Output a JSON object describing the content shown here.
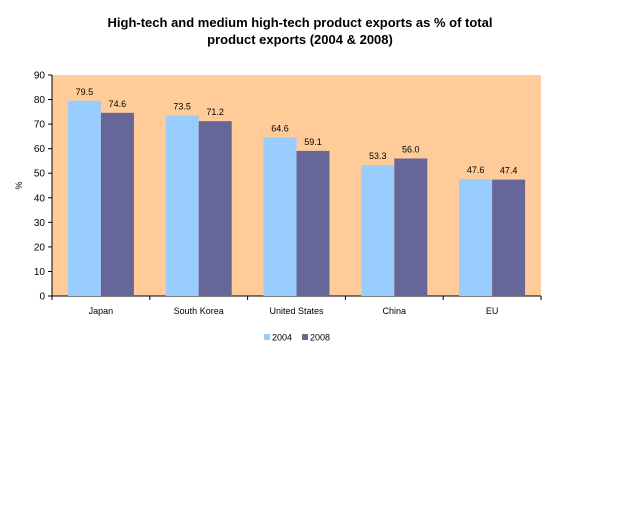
{
  "chart_data": {
    "type": "bar",
    "title_line1": "High-tech and medium high-tech product exports as %  of total",
    "title_line2": "product exports  (2004 & 2008)",
    "xlabel": "",
    "ylabel": "%",
    "ylim": [
      0,
      90
    ],
    "yticks": [
      0,
      10,
      20,
      30,
      40,
      50,
      60,
      70,
      80,
      90
    ],
    "categories": [
      "Japan",
      "South Korea",
      "United States",
      "China",
      "EU"
    ],
    "series": [
      {
        "name": "2004",
        "values": [
          79.5,
          73.5,
          64.6,
          53.3,
          47.6
        ],
        "labels": [
          "79.5",
          "73.5",
          "64.6",
          "53.3",
          "47.6"
        ],
        "color": "#99ccff"
      },
      {
        "name": "2008",
        "values": [
          74.6,
          71.2,
          59.1,
          56.0,
          47.4
        ],
        "labels": [
          "74.6",
          "71.2",
          "59.1",
          "56.0",
          "47.4"
        ],
        "color": "#666699"
      }
    ],
    "plot_background": "#ffcc99",
    "grid": false,
    "legend_position": "bottom"
  }
}
